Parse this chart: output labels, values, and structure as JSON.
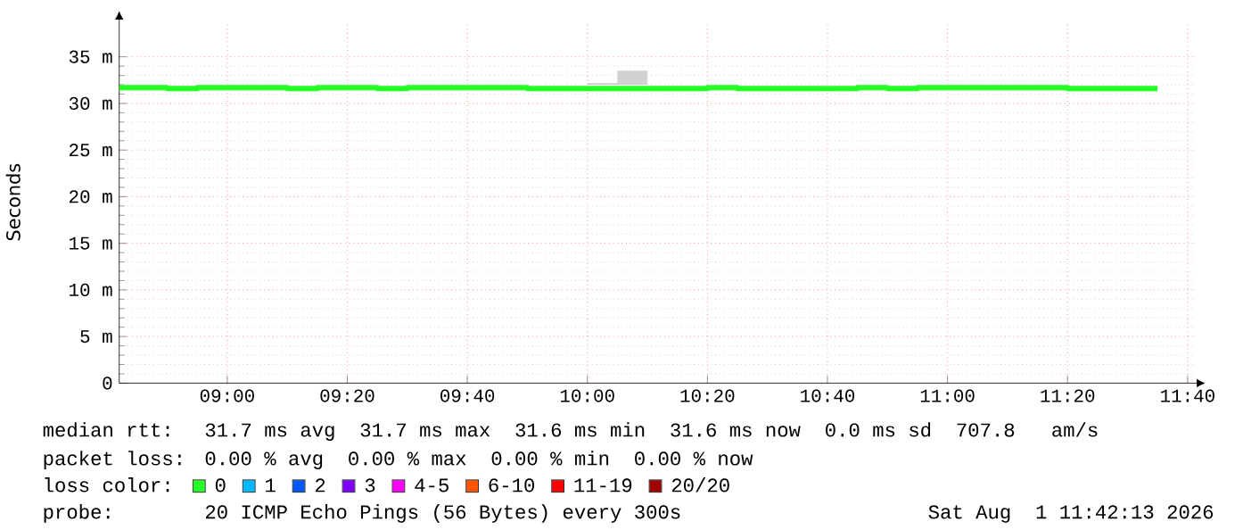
{
  "chart_data": {
    "type": "step",
    "ylabel": "Seconds",
    "xlim": [
      8.7,
      11.687
    ],
    "xticks": [
      {
        "value": 9,
        "label": "09:00"
      },
      {
        "value": 9.3333,
        "label": "09:20"
      },
      {
        "value": 9.6667,
        "label": "09:40"
      },
      {
        "value": 10,
        "label": "10:00"
      },
      {
        "value": 10.3333,
        "label": "10:20"
      },
      {
        "value": 10.6667,
        "label": "10:40"
      },
      {
        "value": 11,
        "label": "11:00"
      },
      {
        "value": 11.3333,
        "label": "11:20"
      },
      {
        "value": 11.6667,
        "label": "11:40"
      }
    ],
    "ylim": [
      0,
      38.8
    ],
    "yticks": [
      0,
      {
        "value": 5,
        "label": "5 m"
      },
      {
        "value": 10,
        "label": "10 m"
      },
      {
        "value": 15,
        "label": "15 m"
      },
      {
        "value": 20,
        "label": "20 m"
      },
      {
        "value": 25,
        "label": "25 m"
      },
      {
        "value": 30,
        "label": "30 m"
      },
      {
        "value": 35,
        "label": "35 m"
      }
    ],
    "grid": true,
    "legend": "bottom",
    "legend_title": "loss color:",
    "x": [
      8.7,
      8.8333,
      8.9167,
      9.1667,
      9.25,
      9.3333,
      9.4167,
      9.5,
      9.8333,
      10.0,
      10.0833,
      10.1667,
      10.3333,
      10.4167,
      10.75,
      10.8333,
      10.9167,
      11.3333,
      11.5833
    ],
    "series": [
      {
        "name": "0",
        "color": "#26ff26",
        "values": [
          31.7,
          31.6,
          31.7,
          31.6,
          31.7,
          31.7,
          31.6,
          31.7,
          31.6,
          31.6,
          31.6,
          31.6,
          31.7,
          31.6,
          31.7,
          31.6,
          31.7,
          31.6,
          31.6
        ],
        "lower": [
          31.7,
          31.6,
          31.7,
          31.6,
          31.7,
          31.7,
          31.6,
          31.7,
          31.6,
          32.0,
          32.0,
          31.6,
          31.7,
          31.6,
          31.7,
          31.6,
          31.7,
          31.6,
          31.6
        ],
        "upper": [
          31.7,
          31.6,
          31.7,
          31.6,
          31.7,
          31.9,
          31.6,
          31.7,
          31.6,
          32.2,
          33.5,
          31.6,
          31.7,
          31.6,
          31.7,
          31.6,
          31.7,
          31.6,
          31.6
        ]
      },
      {
        "name": "1",
        "color": "#00b8ff",
        "values": [
          null,
          null,
          null,
          null,
          null,
          null,
          null,
          null,
          null,
          null,
          null,
          null,
          null,
          null,
          null,
          null,
          null,
          null,
          null
        ]
      },
      {
        "name": "2",
        "color": "#0059ff",
        "values": [
          null,
          null,
          null,
          null,
          null,
          null,
          null,
          null,
          null,
          null,
          null,
          null,
          null,
          null,
          null,
          null,
          null,
          null,
          null
        ]
      },
      {
        "name": "3",
        "color": "#7e00ff",
        "values": [
          null,
          null,
          null,
          null,
          null,
          null,
          null,
          null,
          null,
          null,
          null,
          null,
          null,
          null,
          null,
          null,
          null,
          null,
          null
        ]
      },
      {
        "name": "4-5",
        "color": "#ff00ff",
        "values": [
          null,
          null,
          null,
          null,
          null,
          null,
          null,
          null,
          null,
          null,
          null,
          null,
          null,
          null,
          null,
          null,
          null,
          null,
          null
        ]
      },
      {
        "name": "6-10",
        "color": "#ff5500",
        "values": [
          null,
          null,
          null,
          null,
          null,
          null,
          null,
          null,
          null,
          null,
          null,
          null,
          null,
          null,
          null,
          null,
          null,
          null,
          null
        ]
      },
      {
        "name": "11-19",
        "color": "#ff0000",
        "values": [
          null,
          null,
          null,
          null,
          null,
          null,
          null,
          null,
          null,
          null,
          null,
          null,
          null,
          null,
          null,
          null,
          null,
          null,
          null
        ]
      },
      {
        "name": "20/20",
        "color": "#a10000",
        "values": [
          null,
          null,
          null,
          null,
          null,
          null,
          null,
          null,
          null,
          null,
          null,
          null,
          null,
          null,
          null,
          null,
          null,
          null,
          null
        ]
      }
    ],
    "annotations": [
      "median rtt:",
      "31.7 ms avg  31.7 ms max  31.6 ms min  31.6 ms now  0.0 ms sd  707.8   am/s",
      "packet loss:",
      "0.00 % avg  0.00 % max  0.00 % min  0.00 % now",
      "probe:",
      "20 ICMP Echo Pings (56 Bytes) every 300s",
      "Sat Aug  1 11:42:13 2026"
    ]
  }
}
